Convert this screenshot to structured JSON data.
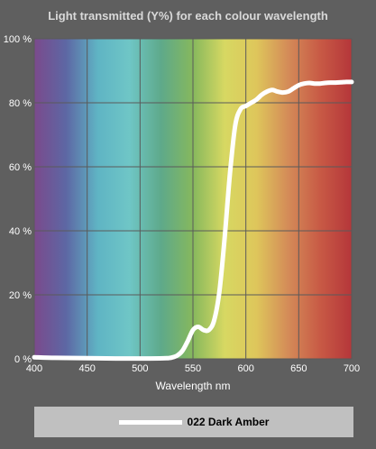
{
  "colors": {
    "background": "#5f5f5f",
    "curve": "#ffffff",
    "legend_bg": "#c0c0c0",
    "spectrum": [
      "#7b4a8c",
      "#5d67a4",
      "#5fb4c4",
      "#6fc6c6",
      "#5ea98a",
      "#86b85d",
      "#d7d862",
      "#dec65b",
      "#d48b58",
      "#c85a45",
      "#b5363a"
    ]
  },
  "chart_data": {
    "type": "line",
    "title": "Light transmitted (Y%) for each colour wavelength",
    "xlabel": "Wavelength nm",
    "ylabel": "",
    "xlim": [
      400,
      700
    ],
    "ylim": [
      0,
      100
    ],
    "x_ticks": [
      400,
      450,
      500,
      550,
      600,
      650,
      700
    ],
    "y_ticks": [
      0,
      20,
      40,
      60,
      80,
      100
    ],
    "y_tick_suffix": " %",
    "grid": true,
    "legend_placement": "bottom",
    "series": [
      {
        "name": "022 Dark Amber",
        "color": "#ffffff",
        "x": [
          400,
          420,
          450,
          480,
          510,
          525,
          530,
          535,
          540,
          545,
          550,
          555,
          560,
          565,
          570,
          575,
          580,
          585,
          590,
          595,
          600,
          605,
          610,
          615,
          620,
          625,
          630,
          635,
          640,
          645,
          650,
          655,
          660,
          665,
          670,
          675,
          680,
          685,
          690,
          695,
          700
        ],
        "values": [
          0.5,
          0.3,
          0.2,
          0.1,
          0.1,
          0.2,
          0.4,
          1,
          2.5,
          5.5,
          9,
          10,
          9,
          9,
          12,
          21,
          38,
          58,
          73,
          78,
          79,
          80,
          81,
          82.5,
          83.5,
          84,
          83.5,
          83.2,
          83.5,
          84.5,
          85.5,
          86,
          86.2,
          86,
          86,
          86.2,
          86.3,
          86.3,
          86.4,
          86.5,
          86.5
        ]
      }
    ]
  }
}
